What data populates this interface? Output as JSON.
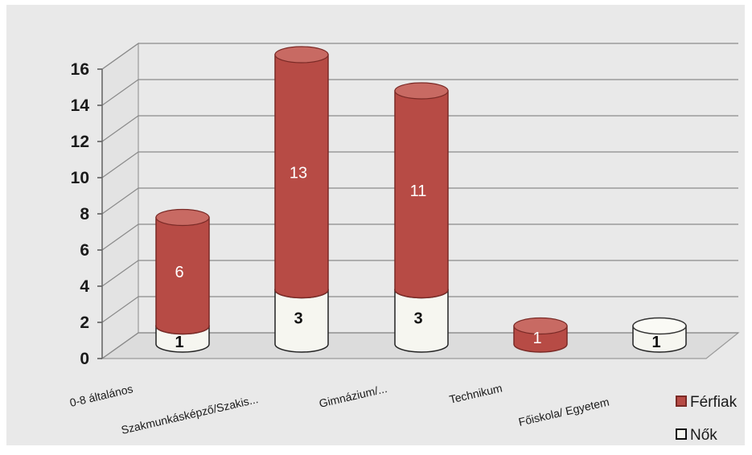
{
  "chart_data": {
    "type": "bar",
    "stacked": true,
    "three_d": true,
    "categories": [
      "0-8 általános",
      "Szakmunkásképző/Szakis...",
      "Gimnázium/...",
      "Technikum",
      "Főiskola/ Egyetem"
    ],
    "series": [
      {
        "name": "Nők",
        "values": [
          1,
          3,
          3,
          0,
          1
        ],
        "labels": [
          "1",
          "3",
          "3",
          "",
          "1"
        ],
        "color": "#f6f6f0"
      },
      {
        "name": "Férfiak",
        "values": [
          6,
          13,
          11,
          1,
          0
        ],
        "labels": [
          "6",
          "13",
          "11",
          "1",
          ""
        ],
        "color": "#b74b45"
      }
    ],
    "y_ticks": [
      "0",
      "2",
      "4",
      "6",
      "8",
      "10",
      "12",
      "14",
      "16"
    ],
    "ylim": [
      0,
      16
    ],
    "grid": true,
    "legend_position": "bottom-right",
    "background": "#e6e6e6"
  }
}
